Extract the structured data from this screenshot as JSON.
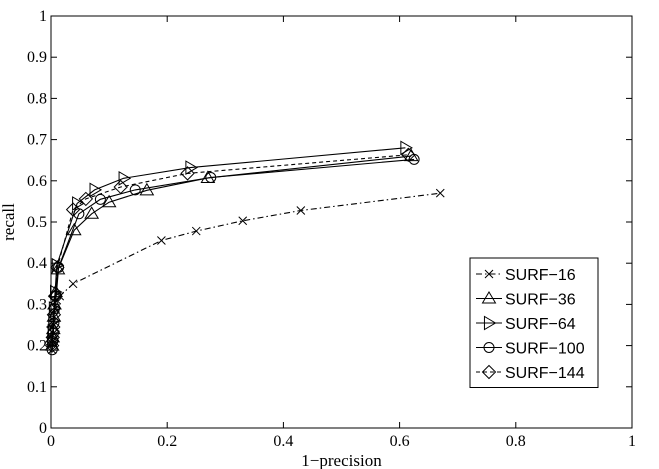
{
  "chart_data": {
    "type": "line",
    "xlabel": "1−precision",
    "ylabel": "recall",
    "xlim": [
      0,
      1
    ],
    "ylim": [
      0,
      1
    ],
    "x_ticks": [
      "0",
      "0.2",
      "0.4",
      "0.6",
      "0.8",
      "1"
    ],
    "y_ticks": [
      "0",
      "0.1",
      "0.2",
      "0.3",
      "0.4",
      "0.5",
      "0.6",
      "0.7",
      "0.8",
      "0.9",
      "1"
    ],
    "grid": false,
    "legend": "right",
    "series": [
      {
        "name": "SURF−16",
        "marker": "x",
        "dash": "dashdot",
        "points": [
          [
            0.002,
            0.19
          ],
          [
            0.003,
            0.21
          ],
          [
            0.004,
            0.23
          ],
          [
            0.005,
            0.25
          ],
          [
            0.006,
            0.27
          ],
          [
            0.008,
            0.29
          ],
          [
            0.01,
            0.31
          ],
          [
            0.015,
            0.32
          ],
          [
            0.038,
            0.35
          ],
          [
            0.19,
            0.455
          ],
          [
            0.25,
            0.478
          ],
          [
            0.33,
            0.503
          ],
          [
            0.43,
            0.528
          ],
          [
            0.67,
            0.57
          ]
        ]
      },
      {
        "name": "SURF−36",
        "marker": "triangle-up",
        "dash": "solid",
        "points": [
          [
            0.002,
            0.2
          ],
          [
            0.003,
            0.22
          ],
          [
            0.004,
            0.24
          ],
          [
            0.005,
            0.27
          ],
          [
            0.006,
            0.3
          ],
          [
            0.008,
            0.33
          ],
          [
            0.012,
            0.385
          ],
          [
            0.04,
            0.48
          ],
          [
            0.07,
            0.52
          ],
          [
            0.1,
            0.548
          ],
          [
            0.165,
            0.577
          ],
          [
            0.27,
            0.607
          ],
          [
            0.62,
            0.66
          ]
        ]
      },
      {
        "name": "SURF−64",
        "marker": "triangle-right",
        "dash": "solid",
        "points": [
          [
            0.002,
            0.21
          ],
          [
            0.003,
            0.235
          ],
          [
            0.004,
            0.26
          ],
          [
            0.005,
            0.29
          ],
          [
            0.007,
            0.33
          ],
          [
            0.01,
            0.395
          ],
          [
            0.045,
            0.545
          ],
          [
            0.075,
            0.578
          ],
          [
            0.125,
            0.606
          ],
          [
            0.24,
            0.632
          ],
          [
            0.61,
            0.68
          ]
        ]
      },
      {
        "name": "SURF−100",
        "marker": "circle",
        "dash": "solid",
        "points": [
          [
            0.002,
            0.19
          ],
          [
            0.003,
            0.21
          ],
          [
            0.004,
            0.23
          ],
          [
            0.005,
            0.255
          ],
          [
            0.006,
            0.29
          ],
          [
            0.009,
            0.32
          ],
          [
            0.013,
            0.39
          ],
          [
            0.048,
            0.52
          ],
          [
            0.085,
            0.555
          ],
          [
            0.145,
            0.578
          ],
          [
            0.275,
            0.608
          ],
          [
            0.625,
            0.652
          ]
        ]
      },
      {
        "name": "SURF−144",
        "marker": "diamond",
        "dash": "dashed",
        "points": [
          [
            0.002,
            0.2
          ],
          [
            0.003,
            0.22
          ],
          [
            0.004,
            0.245
          ],
          [
            0.005,
            0.275
          ],
          [
            0.007,
            0.32
          ],
          [
            0.011,
            0.39
          ],
          [
            0.038,
            0.53
          ],
          [
            0.06,
            0.556
          ],
          [
            0.12,
            0.585
          ],
          [
            0.235,
            0.618
          ],
          [
            0.615,
            0.663
          ]
        ]
      }
    ]
  }
}
